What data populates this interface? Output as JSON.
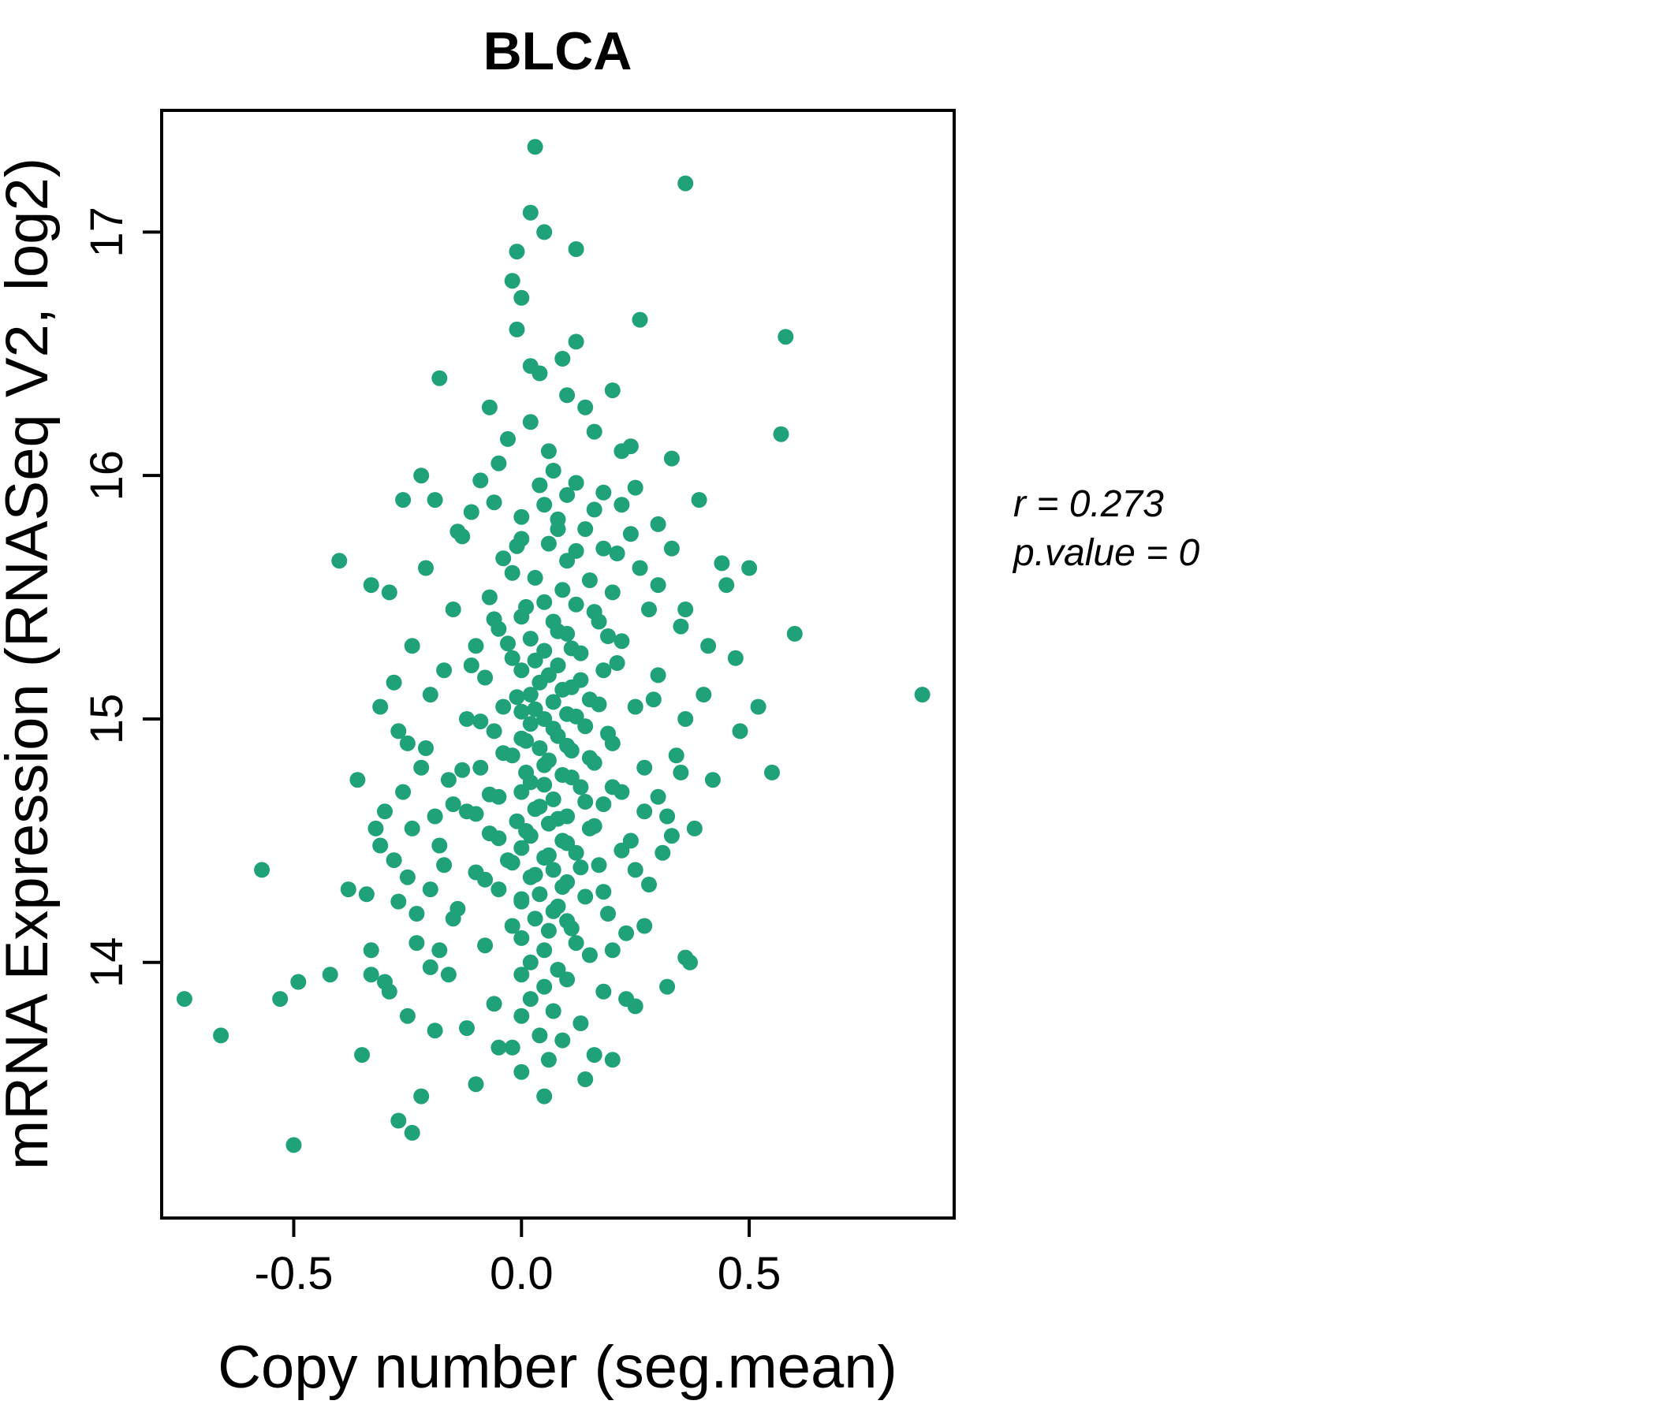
{
  "title": "BLCA",
  "annotation": {
    "line1": "r = 0.273",
    "line2": "p.value = 0"
  },
  "chart_data": {
    "type": "scatter",
    "title": "BLCA",
    "xlabel": "Copy number (seg.mean)",
    "ylabel": "mRNA Expression (RNASeq V2, log2)",
    "xlim": [
      -0.79,
      0.95
    ],
    "ylim": [
      12.95,
      17.5
    ],
    "xticks": [
      -0.5,
      0.0,
      0.5
    ],
    "xtick_labels": [
      "-0.5",
      "0.0",
      "0.5"
    ],
    "yticks": [
      14,
      15,
      16,
      17
    ],
    "ytick_labels": [
      "14",
      "15",
      "16",
      "17"
    ],
    "grid": false,
    "legend": "none",
    "point_color": "#1fa179",
    "title_color": "#1fa179",
    "r": 0.273,
    "p_value": 0,
    "points": [
      [
        0.03,
        17.35
      ],
      [
        0.36,
        17.2
      ],
      [
        0.02,
        17.08
      ],
      [
        0.05,
        17.0
      ],
      [
        -0.01,
        16.92
      ],
      [
        0.12,
        16.93
      ],
      [
        -0.02,
        16.8
      ],
      [
        0.0,
        16.73
      ],
      [
        -0.01,
        16.6
      ],
      [
        0.26,
        16.64
      ],
      [
        0.12,
        16.55
      ],
      [
        0.58,
        16.57
      ],
      [
        0.02,
        16.45
      ],
      [
        -0.18,
        16.4
      ],
      [
        0.04,
        16.42
      ],
      [
        0.1,
        16.33
      ],
      [
        0.14,
        16.28
      ],
      [
        0.02,
        16.22
      ],
      [
        0.57,
        16.17
      ],
      [
        -0.03,
        16.15
      ],
      [
        0.24,
        16.12
      ],
      [
        0.33,
        16.07
      ],
      [
        -0.05,
        16.05
      ],
      [
        0.07,
        16.02
      ],
      [
        -0.22,
        16.0
      ],
      [
        0.22,
        16.1
      ],
      [
        -0.09,
        15.98
      ],
      [
        0.16,
        16.18
      ],
      [
        0.06,
        16.1
      ],
      [
        -0.07,
        16.28
      ],
      [
        0.09,
        16.48
      ],
      [
        0.2,
        16.35
      ],
      [
        0.12,
        15.97
      ],
      [
        0.18,
        15.93
      ],
      [
        0.39,
        15.9
      ],
      [
        -0.19,
        15.9
      ],
      [
        0.05,
        15.88
      ],
      [
        0.22,
        15.88
      ],
      [
        -0.11,
        15.85
      ],
      [
        0.08,
        15.82
      ],
      [
        0.3,
        15.8
      ],
      [
        0.25,
        15.95
      ],
      [
        -0.26,
        15.9
      ],
      [
        0.04,
        15.96
      ],
      [
        0.1,
        15.92
      ],
      [
        -0.06,
        15.89
      ],
      [
        0.16,
        15.86
      ],
      [
        0.0,
        15.83
      ],
      [
        0.08,
        15.78
      ],
      [
        -0.14,
        15.77
      ],
      [
        0.12,
        15.69
      ],
      [
        0.24,
        15.76
      ],
      [
        -0.01,
        15.71
      ],
      [
        0.14,
        15.78
      ],
      [
        -0.13,
        15.75
      ],
      [
        0.0,
        15.74
      ],
      [
        0.06,
        15.72
      ],
      [
        0.18,
        15.7
      ],
      [
        0.33,
        15.7
      ],
      [
        0.21,
        15.68
      ],
      [
        -0.04,
        15.66
      ],
      [
        0.1,
        15.65
      ],
      [
        -0.4,
        15.65
      ],
      [
        0.44,
        15.64
      ],
      [
        0.26,
        15.62
      ],
      [
        0.5,
        15.62
      ],
      [
        -0.21,
        15.62
      ],
      [
        -0.02,
        15.6
      ],
      [
        0.03,
        15.58
      ],
      [
        0.15,
        15.57
      ],
      [
        -0.33,
        15.55
      ],
      [
        0.3,
        15.55
      ],
      [
        0.45,
        15.55
      ],
      [
        0.09,
        15.53
      ],
      [
        0.2,
        15.52
      ],
      [
        -0.29,
        15.52
      ],
      [
        -0.07,
        15.5
      ],
      [
        0.05,
        15.48
      ],
      [
        0.12,
        15.47
      ],
      [
        0.28,
        15.45
      ],
      [
        -0.15,
        15.45
      ],
      [
        0.36,
        15.45
      ],
      [
        0.0,
        15.42
      ],
      [
        0.07,
        15.4
      ],
      [
        0.17,
        15.4
      ],
      [
        0.35,
        15.38
      ],
      [
        -0.05,
        15.37
      ],
      [
        0.6,
        15.35
      ],
      [
        0.1,
        15.35
      ],
      [
        0.02,
        15.33
      ],
      [
        0.22,
        15.32
      ],
      [
        -0.1,
        15.3
      ],
      [
        -0.24,
        15.3
      ],
      [
        0.05,
        15.28
      ],
      [
        0.13,
        15.27
      ],
      [
        0.47,
        15.25
      ],
      [
        -0.02,
        15.25
      ],
      [
        0.08,
        15.22
      ],
      [
        0.18,
        15.2
      ],
      [
        -0.17,
        15.2
      ],
      [
        0.0,
        15.2
      ],
      [
        0.01,
        15.46
      ],
      [
        0.16,
        15.44
      ],
      [
        -0.06,
        15.41
      ],
      [
        0.08,
        15.36
      ],
      [
        0.19,
        15.34
      ],
      [
        -0.03,
        15.31
      ],
      [
        0.11,
        15.29
      ],
      [
        0.03,
        15.24
      ],
      [
        0.21,
        15.23
      ],
      [
        -0.11,
        15.22
      ],
      [
        0.06,
        15.18
      ],
      [
        0.13,
        15.16
      ],
      [
        0.3,
        15.18
      ],
      [
        -0.08,
        15.17
      ],
      [
        0.04,
        15.15
      ],
      [
        0.11,
        15.13
      ],
      [
        0.88,
        15.1
      ],
      [
        0.02,
        15.1
      ],
      [
        -0.2,
        15.1
      ],
      [
        0.4,
        15.1
      ],
      [
        0.15,
        15.08
      ],
      [
        0.07,
        15.07
      ],
      [
        -0.04,
        15.05
      ],
      [
        0.25,
        15.05
      ],
      [
        -0.31,
        15.05
      ],
      [
        0.52,
        15.05
      ],
      [
        0.0,
        15.03
      ],
      [
        0.1,
        15.02
      ],
      [
        0.05,
        15.0
      ],
      [
        0.36,
        15.0
      ],
      [
        -0.12,
        15.0
      ],
      [
        0.09,
        15.12
      ],
      [
        -0.01,
        15.09
      ],
      [
        0.17,
        15.06
      ],
      [
        0.03,
        15.04
      ],
      [
        0.12,
        15.01
      ],
      [
        0.29,
        15.08
      ],
      [
        0.41,
        15.3
      ],
      [
        0.02,
        14.98
      ],
      [
        0.14,
        14.97
      ],
      [
        -0.06,
        14.95
      ],
      [
        0.48,
        14.95
      ],
      [
        -0.27,
        14.95
      ],
      [
        0.08,
        14.93
      ],
      [
        0.0,
        14.92
      ],
      [
        0.2,
        14.9
      ],
      [
        -0.25,
        14.9
      ],
      [
        0.04,
        14.88
      ],
      [
        0.11,
        14.87
      ],
      [
        -0.02,
        14.85
      ],
      [
        0.06,
        14.83
      ],
      [
        0.16,
        14.82
      ],
      [
        0.27,
        14.8
      ],
      [
        -0.09,
        14.8
      ],
      [
        -0.22,
        14.8
      ],
      [
        0.01,
        14.78
      ],
      [
        0.09,
        14.77
      ],
      [
        0.42,
        14.75
      ],
      [
        0.55,
        14.78
      ],
      [
        0.35,
        14.78
      ],
      [
        -0.36,
        14.75
      ],
      [
        -0.09,
        14.99
      ],
      [
        0.07,
        14.96
      ],
      [
        0.19,
        14.94
      ],
      [
        0.01,
        14.91
      ],
      [
        0.1,
        14.89
      ],
      [
        -0.04,
        14.86
      ],
      [
        0.15,
        14.84
      ],
      [
        0.34,
        14.85
      ],
      [
        -0.16,
        14.75
      ],
      [
        0.05,
        14.73
      ],
      [
        0.13,
        14.72
      ],
      [
        0.0,
        14.7
      ],
      [
        0.22,
        14.7
      ],
      [
        -0.26,
        14.7
      ],
      [
        -0.05,
        14.68
      ],
      [
        0.07,
        14.67
      ],
      [
        0.3,
        14.68
      ],
      [
        0.18,
        14.65
      ],
      [
        -0.15,
        14.65
      ],
      [
        0.03,
        14.63
      ],
      [
        -0.12,
        14.62
      ],
      [
        0.27,
        14.62
      ],
      [
        -0.3,
        14.62
      ],
      [
        0.1,
        14.6
      ],
      [
        0.32,
        14.6
      ],
      [
        -0.19,
        14.6
      ],
      [
        -0.01,
        14.58
      ],
      [
        0.06,
        14.57
      ],
      [
        0.05,
        14.81
      ],
      [
        -0.13,
        14.79
      ],
      [
        0.11,
        14.76
      ],
      [
        0.02,
        14.74
      ],
      [
        0.2,
        14.72
      ],
      [
        -0.07,
        14.69
      ],
      [
        0.14,
        14.66
      ],
      [
        0.04,
        14.64
      ],
      [
        0.15,
        14.55
      ],
      [
        0.38,
        14.55
      ],
      [
        -0.32,
        14.55
      ],
      [
        -0.24,
        14.55
      ],
      [
        -0.07,
        14.53
      ],
      [
        0.02,
        14.52
      ],
      [
        0.33,
        14.52
      ],
      [
        0.09,
        14.5
      ],
      [
        0.24,
        14.5
      ],
      [
        -0.18,
        14.48
      ],
      [
        0.0,
        14.47
      ],
      [
        0.12,
        14.45
      ],
      [
        0.31,
        14.45
      ],
      [
        0.05,
        14.43
      ],
      [
        -0.03,
        14.42
      ],
      [
        -0.28,
        14.42
      ],
      [
        0.17,
        14.4
      ],
      [
        -0.17,
        14.4
      ],
      [
        0.07,
        14.38
      ],
      [
        0.25,
        14.38
      ],
      [
        -0.57,
        14.38
      ],
      [
        -0.1,
        14.37
      ],
      [
        -0.1,
        14.61
      ],
      [
        0.08,
        14.59
      ],
      [
        0.16,
        14.56
      ],
      [
        0.01,
        14.54
      ],
      [
        -0.05,
        14.51
      ],
      [
        0.1,
        14.49
      ],
      [
        0.22,
        14.46
      ],
      [
        0.06,
        14.44
      ],
      [
        -0.31,
        14.48
      ],
      [
        0.02,
        14.35
      ],
      [
        -0.25,
        14.35
      ],
      [
        0.1,
        14.33
      ],
      [
        0.28,
        14.32
      ],
      [
        -0.05,
        14.3
      ],
      [
        -0.2,
        14.3
      ],
      [
        -0.38,
        14.3
      ],
      [
        0.04,
        14.28
      ],
      [
        -0.34,
        14.28
      ],
      [
        0.14,
        14.27
      ],
      [
        0.0,
        14.25
      ],
      [
        0.08,
        14.23
      ],
      [
        -0.14,
        14.22
      ],
      [
        -0.23,
        14.2
      ],
      [
        0.19,
        14.2
      ],
      [
        0.03,
        14.18
      ],
      [
        0.1,
        14.17
      ],
      [
        -0.02,
        14.41
      ],
      [
        0.13,
        14.39
      ],
      [
        0.03,
        14.36
      ],
      [
        -0.08,
        14.34
      ],
      [
        0.09,
        14.31
      ],
      [
        0.18,
        14.29
      ],
      [
        0.0,
        14.26
      ],
      [
        -0.27,
        14.25
      ],
      [
        -0.02,
        14.15
      ],
      [
        0.06,
        14.13
      ],
      [
        0.23,
        14.12
      ],
      [
        0.0,
        14.1
      ],
      [
        0.12,
        14.08
      ],
      [
        -0.08,
        14.07
      ],
      [
        -0.18,
        14.05
      ],
      [
        0.2,
        14.05
      ],
      [
        -0.33,
        14.05
      ],
      [
        0.05,
        14.05
      ],
      [
        0.15,
        14.03
      ],
      [
        0.36,
        14.02
      ],
      [
        0.02,
        14.0
      ],
      [
        0.37,
        14.0
      ],
      [
        0.07,
        14.21
      ],
      [
        -0.15,
        14.18
      ],
      [
        0.11,
        14.14
      ],
      [
        0.27,
        14.15
      ],
      [
        -0.23,
        14.08
      ],
      [
        -0.21,
        14.88
      ],
      [
        -0.2,
        13.98
      ],
      [
        0.08,
        13.97
      ],
      [
        0.0,
        13.95
      ],
      [
        -0.16,
        13.95
      ],
      [
        -0.33,
        13.95
      ],
      [
        -0.42,
        13.95
      ],
      [
        0.1,
        13.93
      ],
      [
        -0.3,
        13.92
      ],
      [
        -0.49,
        13.92
      ],
      [
        0.05,
        13.9
      ],
      [
        0.18,
        13.88
      ],
      [
        -0.29,
        13.88
      ],
      [
        0.02,
        13.85
      ],
      [
        0.23,
        13.85
      ],
      [
        -0.53,
        13.85
      ],
      [
        -0.74,
        13.85
      ],
      [
        -0.06,
        13.83
      ],
      [
        0.25,
        13.82
      ],
      [
        0.07,
        13.8
      ],
      [
        0.32,
        13.9
      ],
      [
        -0.28,
        15.15
      ],
      [
        0.0,
        13.78
      ],
      [
        -0.25,
        13.78
      ],
      [
        0.13,
        13.75
      ],
      [
        -0.12,
        13.73
      ],
      [
        -0.19,
        13.72
      ],
      [
        0.04,
        13.7
      ],
      [
        -0.66,
        13.7
      ],
      [
        0.09,
        13.68
      ],
      [
        -0.02,
        13.65
      ],
      [
        -0.05,
        13.65
      ],
      [
        -0.35,
        13.62
      ],
      [
        0.16,
        13.62
      ],
      [
        0.06,
        13.6
      ],
      [
        0.0,
        13.55
      ],
      [
        0.14,
        13.52
      ],
      [
        0.2,
        13.6
      ],
      [
        -0.1,
        13.5
      ],
      [
        0.05,
        13.45
      ],
      [
        -0.22,
        13.45
      ],
      [
        -0.27,
        13.35
      ],
      [
        -0.24,
        13.3
      ],
      [
        -0.5,
        13.25
      ]
    ]
  }
}
